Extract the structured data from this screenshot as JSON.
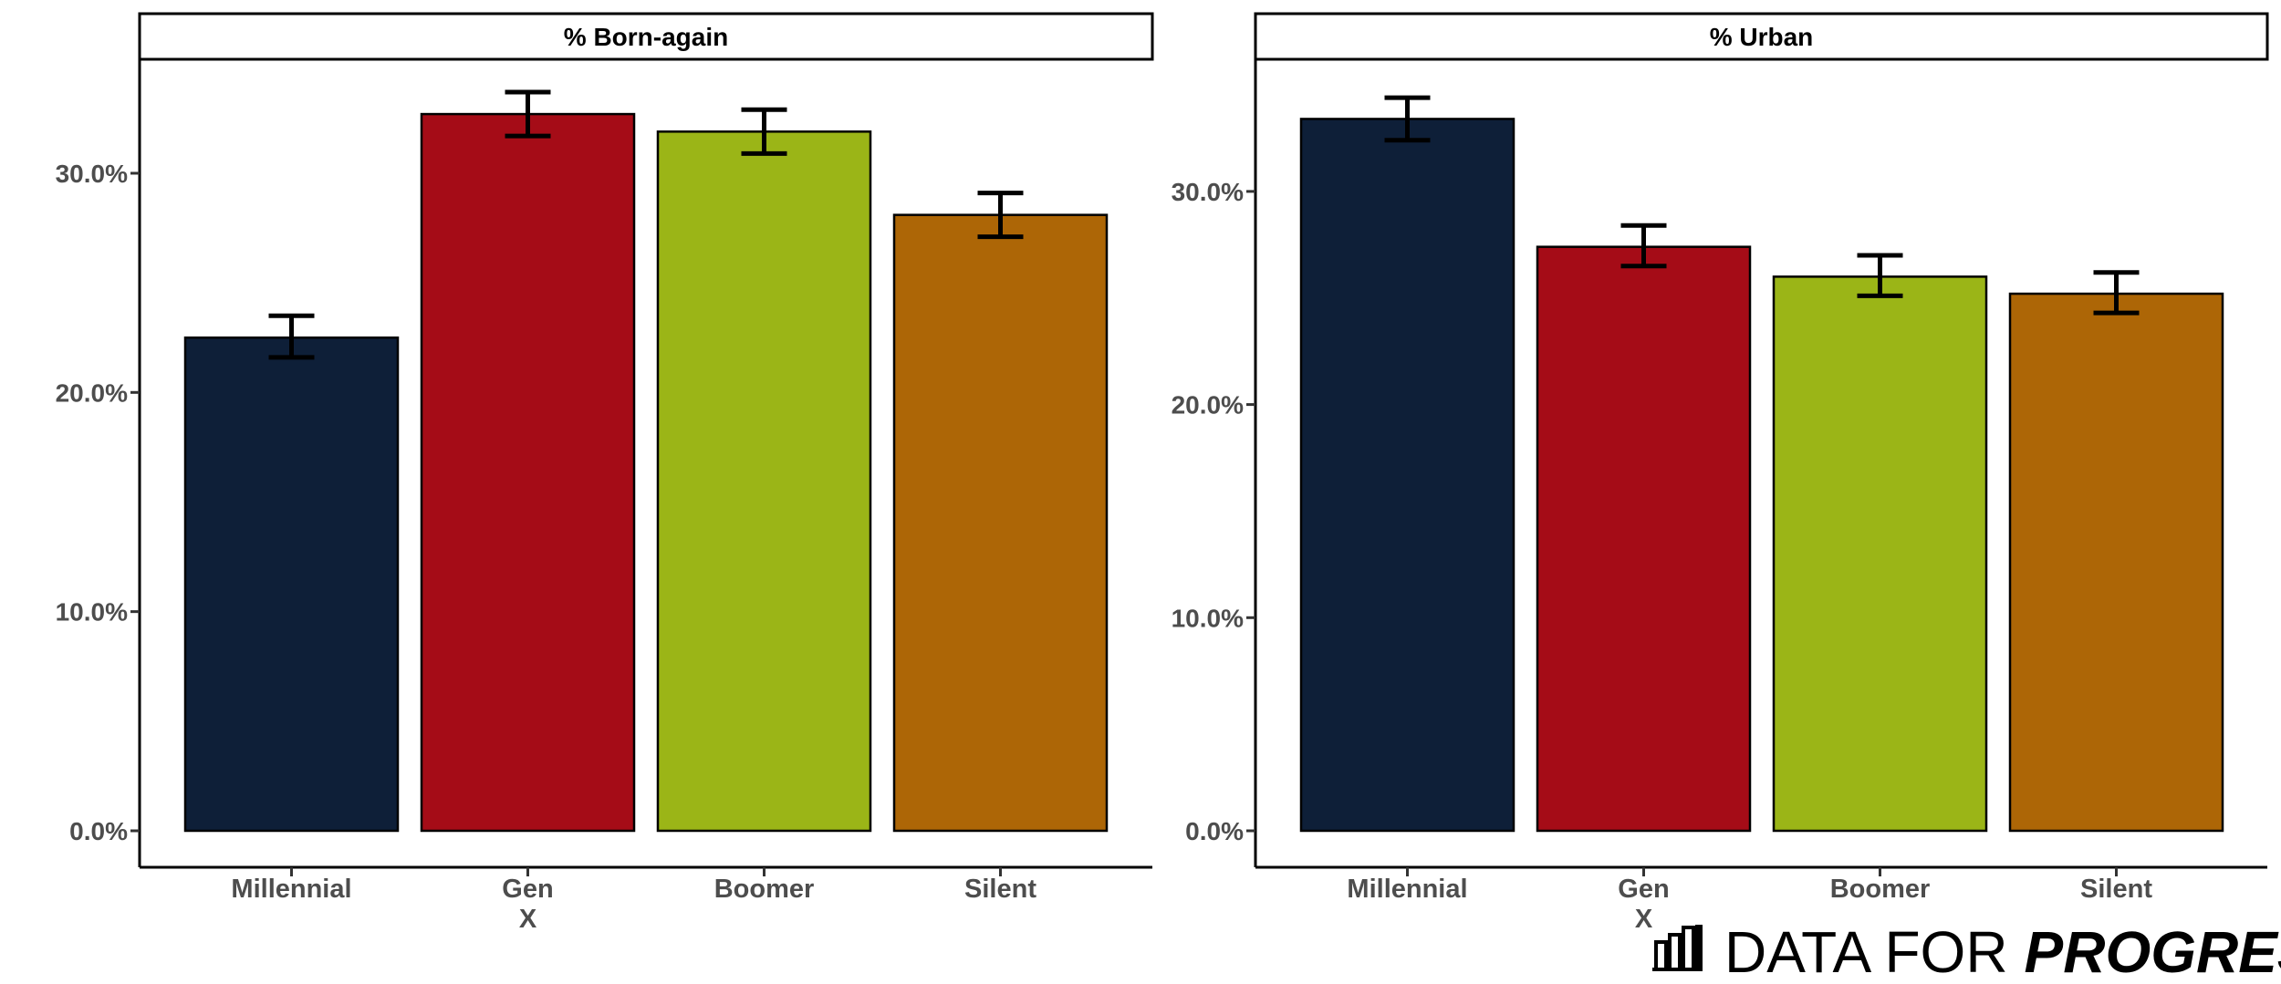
{
  "chart_data": [
    {
      "type": "bar",
      "title": "% Born-again",
      "categories": [
        "Millennial",
        "Gen X",
        "Boomer",
        "Silent"
      ],
      "category_labels": [
        [
          "Millennial"
        ],
        [
          "Gen",
          "X"
        ],
        [
          "Boomer"
        ],
        [
          "Silent"
        ]
      ],
      "values": [
        22.5,
        32.7,
        31.9,
        28.1
      ],
      "error_low": [
        21.6,
        31.7,
        30.9,
        27.1
      ],
      "error_high": [
        23.5,
        33.7,
        32.9,
        29.1
      ],
      "ylim": [
        0,
        35.2
      ],
      "yticks": [
        0,
        10,
        20,
        30
      ],
      "ytick_labels": [
        "0.0%",
        "10.0%",
        "20.0%",
        "30.0%"
      ],
      "colors": [
        "#0e1f38",
        "#a50c17",
        "#9bb517",
        "#ad6606"
      ],
      "xlabel": "",
      "ylabel": "",
      "grid": false,
      "legend": "none"
    },
    {
      "type": "bar",
      "title": "% Urban",
      "categories": [
        "Millennial",
        "Gen X",
        "Boomer",
        "Silent"
      ],
      "category_labels": [
        [
          "Millennial"
        ],
        [
          "Gen",
          "X"
        ],
        [
          "Boomer"
        ],
        [
          "Silent"
        ]
      ],
      "values": [
        33.4,
        27.4,
        26.0,
        25.2
      ],
      "error_low": [
        32.4,
        26.5,
        25.1,
        24.3
      ],
      "error_high": [
        34.4,
        28.4,
        27.0,
        26.2
      ],
      "ylim": [
        0,
        36.2
      ],
      "yticks": [
        0,
        10,
        20,
        30
      ],
      "ytick_labels": [
        "0.0%",
        "10.0%",
        "20.0%",
        "30.0%"
      ],
      "colors": [
        "#0e1f38",
        "#a50c17",
        "#9bb517",
        "#ad6606"
      ],
      "xlabel": "",
      "ylabel": "",
      "grid": false,
      "legend": "none"
    }
  ],
  "logo": {
    "text_light": "DATA FOR",
    "text_bold": "PROGRESS",
    "icon": "bar-chart-icon"
  }
}
